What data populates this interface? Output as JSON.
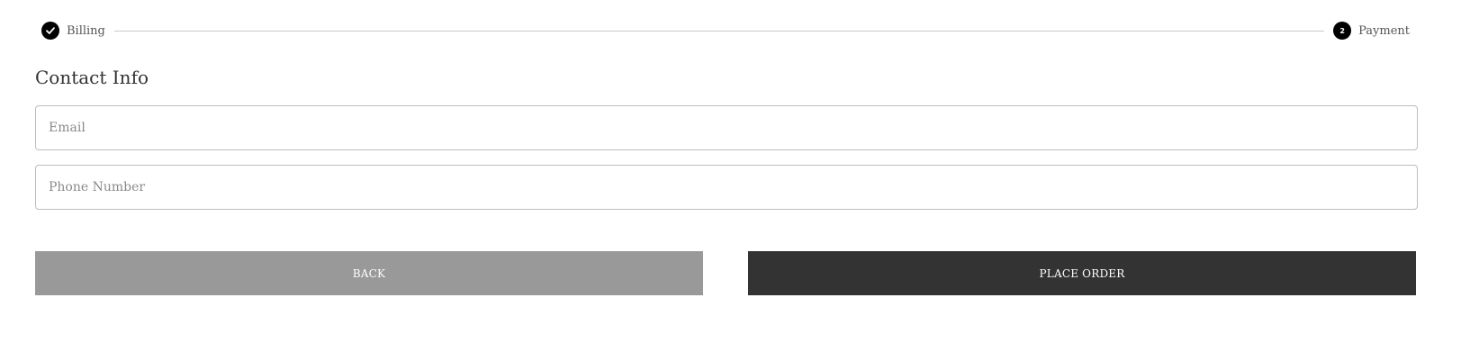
{
  "stepper": {
    "steps": [
      {
        "label": "Billing",
        "status": "completed",
        "icon": "check-icon"
      },
      {
        "label": "Payment",
        "number": "2",
        "status": "current"
      }
    ]
  },
  "contact": {
    "title": "Contact Info",
    "email": {
      "placeholder": "Email",
      "value": ""
    },
    "phone": {
      "placeholder": "Phone Number",
      "value": ""
    }
  },
  "actions": {
    "back_label": "BACK",
    "place_order_label": "PLACE ORDER"
  },
  "colors": {
    "step_circle": "#000000",
    "back_button": "#999999",
    "place_order_button": "#333333",
    "input_border": "#bdbdbd",
    "step_line": "#c9c9c9"
  }
}
